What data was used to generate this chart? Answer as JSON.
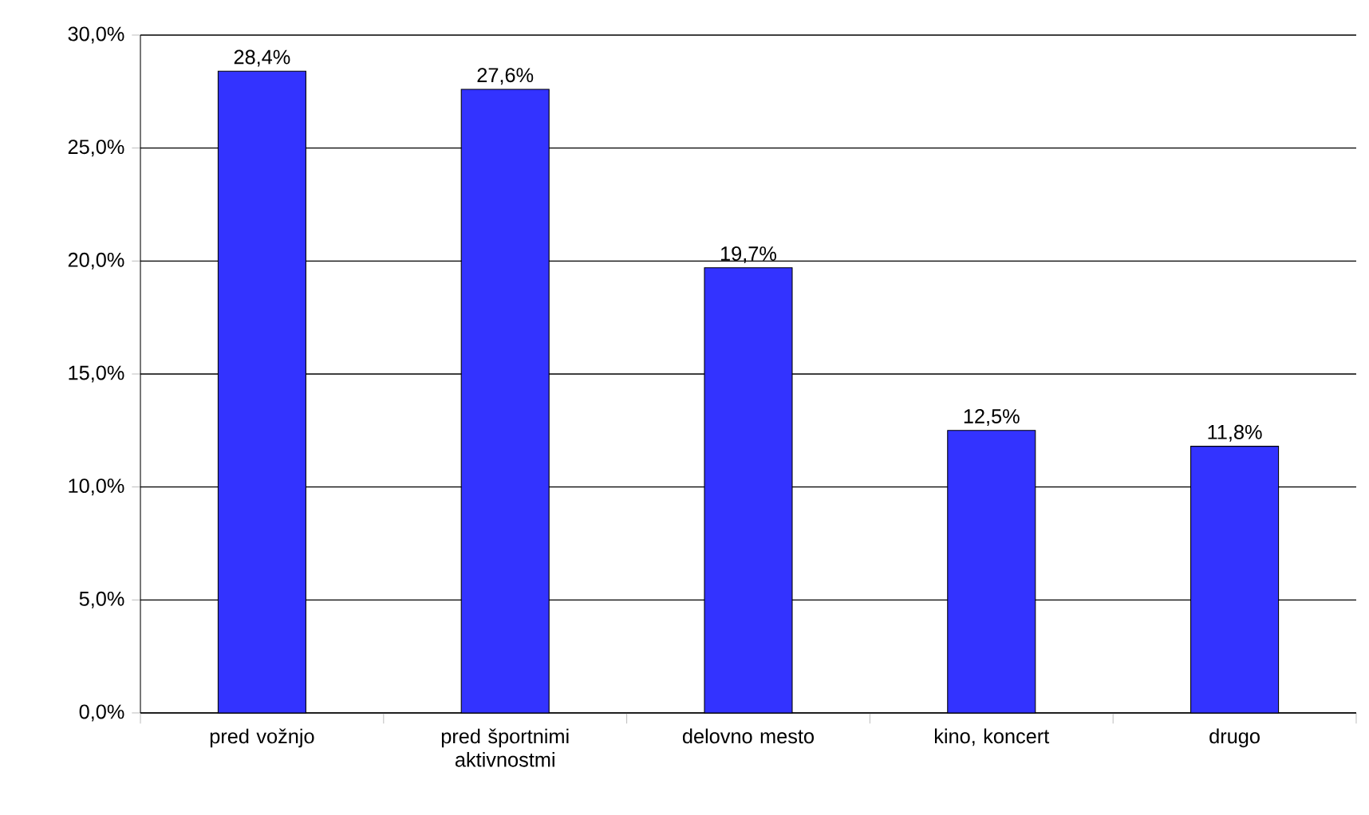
{
  "chart_data": {
    "type": "bar",
    "categories": [
      "pred vožnjo",
      "pred športnimi aktivnostmi",
      "delovno mesto",
      "kino, koncert",
      "drugo"
    ],
    "values": [
      28.4,
      27.6,
      19.7,
      12.5,
      11.8
    ],
    "value_labels": [
      "28,4%",
      "27,6%",
      "19,7%",
      "12,5%",
      "11,8%"
    ],
    "color": "#3333ff",
    "ylim": [
      0,
      30
    ],
    "yticks": [
      {
        "value": 0,
        "label": "0,0%"
      },
      {
        "value": 5,
        "label": "5,0%"
      },
      {
        "value": 10,
        "label": "10,0%"
      },
      {
        "value": 15,
        "label": "15,0%"
      },
      {
        "value": 20,
        "label": "20,0%"
      },
      {
        "value": 25,
        "label": "25,0%"
      },
      {
        "value": 30,
        "label": "30,0%"
      }
    ],
    "grid": "y"
  }
}
